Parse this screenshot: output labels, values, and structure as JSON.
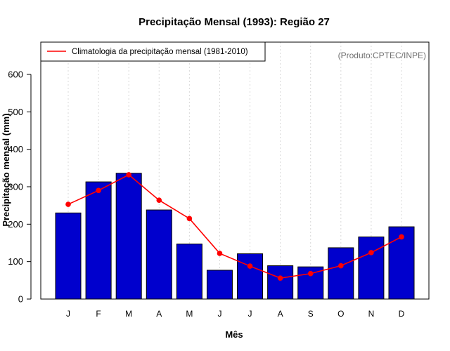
{
  "chart_data": {
    "type": "bar",
    "title": "Precipitação Mensal (1993): Região 27",
    "xlabel": "Mês",
    "ylabel": "Precipitação mensal (mm)",
    "categories": [
      "J",
      "F",
      "M",
      "A",
      "M",
      "J",
      "J",
      "A",
      "S",
      "O",
      "N",
      "D"
    ],
    "ylim": [
      0,
      600
    ],
    "yticks": [
      0,
      100,
      200,
      300,
      400,
      500,
      600
    ],
    "series": [
      {
        "name": "Precipitação mensal (1993)",
        "kind": "bar",
        "color": "#0000cd",
        "values": [
          230,
          313,
          336,
          238,
          147,
          77,
          121,
          89,
          86,
          137,
          166,
          193
        ]
      },
      {
        "name": "Climatologia da precipitação mensal (1981-2010)",
        "kind": "line",
        "color": "#ff0000",
        "values": [
          253,
          290,
          332,
          264,
          215,
          122,
          88,
          56,
          68,
          89,
          124,
          166
        ]
      }
    ],
    "legend": {
      "position": "top-left",
      "entries": [
        "Climatologia da precipitação mensal (1981-2010)"
      ]
    },
    "annotation": "(Produto:CPTEC/INPE)",
    "grid": "vertical dotted"
  }
}
